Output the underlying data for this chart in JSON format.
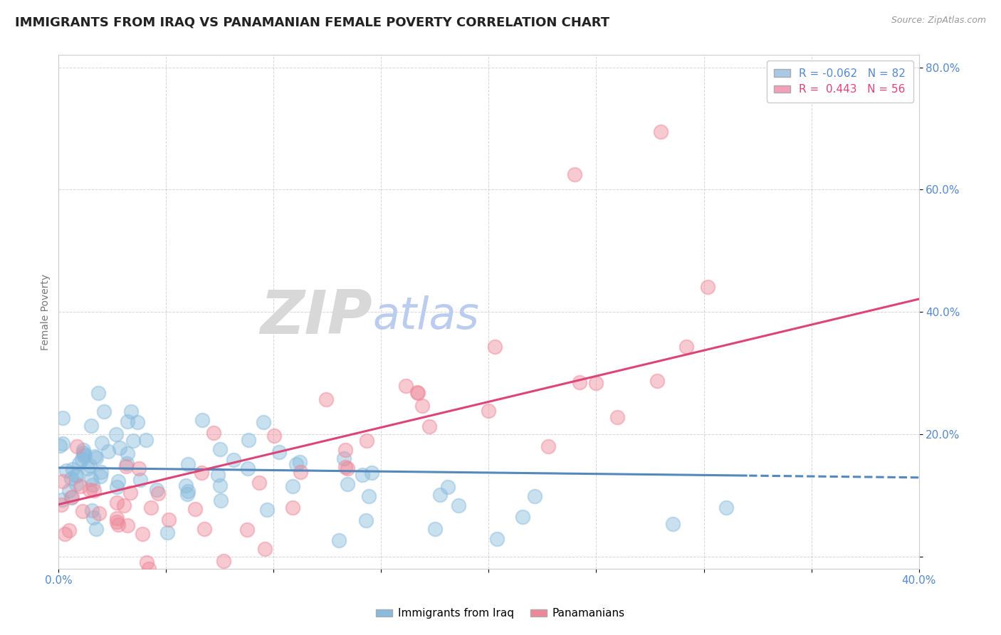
{
  "title": "IMMIGRANTS FROM IRAQ VS PANAMANIAN FEMALE POVERTY CORRELATION CHART",
  "source_text": "Source: ZipAtlas.com",
  "watermark_zip": "ZIP",
  "watermark_atlas": "atlas",
  "xlabel": "",
  "ylabel": "Female Poverty",
  "xlim": [
    0.0,
    0.4
  ],
  "ylim": [
    -0.02,
    0.82
  ],
  "xticks": [
    0.0,
    0.05,
    0.1,
    0.15,
    0.2,
    0.25,
    0.3,
    0.35,
    0.4
  ],
  "xtick_labels": [
    "0.0%",
    "",
    "",
    "",
    "",
    "",
    "",
    "",
    "40.0%"
  ],
  "yticks": [
    0.0,
    0.2,
    0.4,
    0.6,
    0.8
  ],
  "ytick_labels": [
    "",
    "20.0%",
    "40.0%",
    "60.0%",
    "80.0%"
  ],
  "legend_entries": [
    {
      "label": "R = -0.062   N = 82",
      "color": "#a8c8e8"
    },
    {
      "label": "R =  0.443   N = 56",
      "color": "#f4a0b8"
    }
  ],
  "series1_label": "Immigrants from Iraq",
  "series2_label": "Panamanians",
  "series1_color": "#88bbdd",
  "series2_color": "#ee8899",
  "series1_R": -0.062,
  "series1_N": 82,
  "series2_R": 0.443,
  "series2_N": 56,
  "trendline1_color": "#5588bb",
  "trendline2_color": "#dd4477",
  "background_color": "#ffffff",
  "grid_color": "#bbbbbb",
  "title_color": "#222222",
  "axis_label_color": "#777777",
  "tick_label_color": "#5588cc",
  "watermark_zip_color": "#d8d8d8",
  "watermark_atlas_color": "#bbccee",
  "title_fontsize": 13,
  "watermark_fontsize": 62
}
